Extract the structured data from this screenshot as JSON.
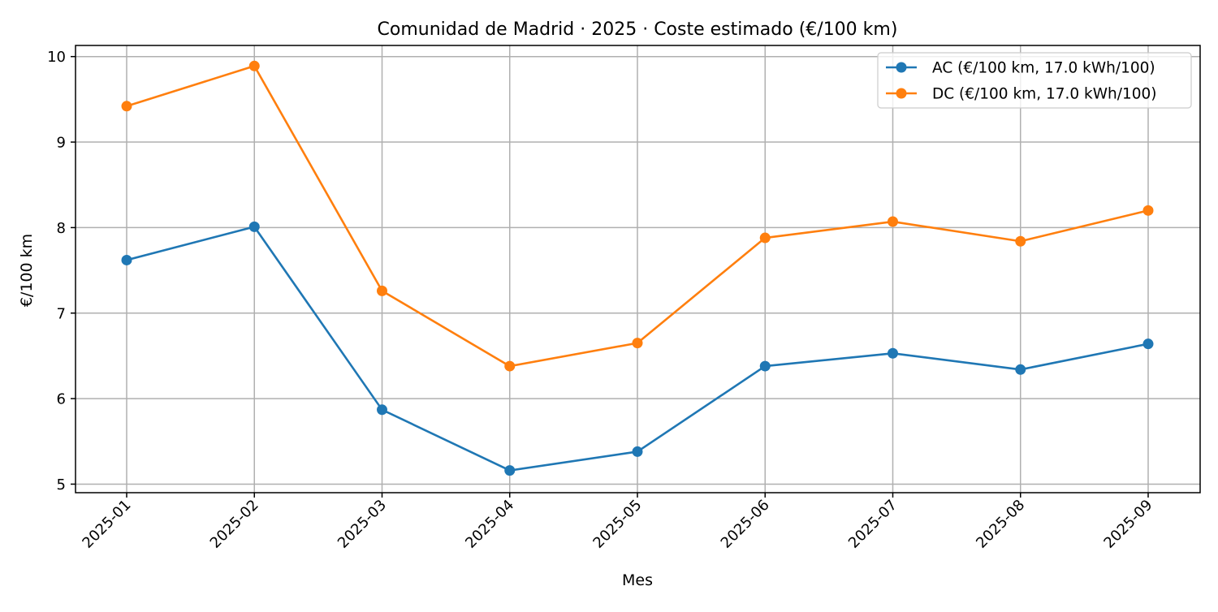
{
  "chart_data": {
    "type": "line",
    "title": "Comunidad de Madrid · 2025 · Coste estimado (€/100 km)",
    "xlabel": "Mes",
    "ylabel": "€/100 km",
    "categories": [
      "2025-01",
      "2025-02",
      "2025-03",
      "2025-04",
      "2025-05",
      "2025-06",
      "2025-07",
      "2025-08",
      "2025-09"
    ],
    "ylim": [
      4.9,
      10.13
    ],
    "yticks": [
      5,
      6,
      7,
      8,
      9,
      10
    ],
    "grid": true,
    "legend_position": "top-right",
    "series": [
      {
        "name": "AC (€/100 km, 17.0 kWh/100)",
        "color": "#1f77b4",
        "marker": "circle",
        "values": [
          7.62,
          8.01,
          5.87,
          5.16,
          5.38,
          6.38,
          6.53,
          6.34,
          6.64
        ]
      },
      {
        "name": "DC (€/100 km, 17.0 kWh/100)",
        "color": "#ff7f0e",
        "marker": "circle",
        "values": [
          9.42,
          9.89,
          7.26,
          6.38,
          6.65,
          7.88,
          8.07,
          7.84,
          8.2
        ]
      }
    ]
  }
}
